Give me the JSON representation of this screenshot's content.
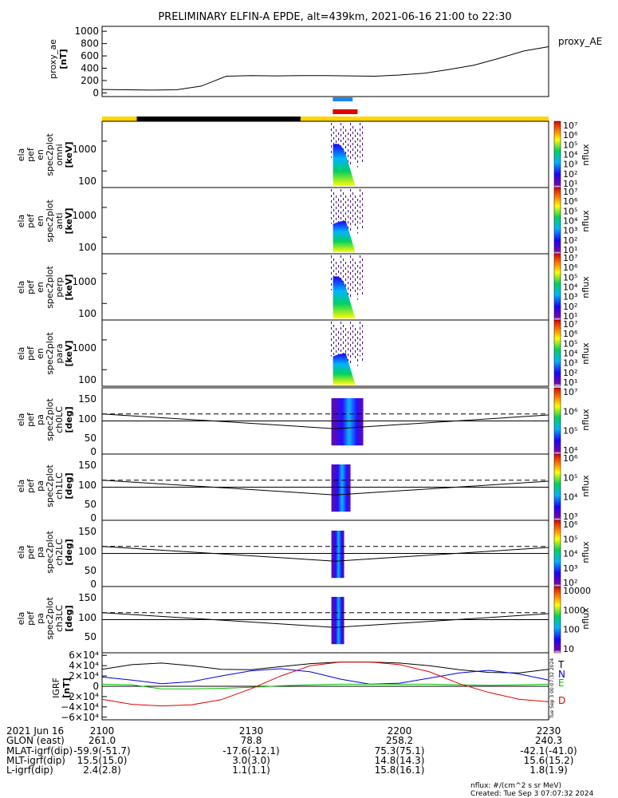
{
  "title": "PRELIMINARY ELFIN-A EPDE, alt=439km, 2021-06-16 21:00 to 22:30",
  "colors": {
    "ae_line": "#000000",
    "bar_blue": "#1e88e5",
    "bar_red": "#e00000",
    "bar_yellow": "#ffd400",
    "bar_black": "#000000",
    "igrf_T": "#000000",
    "igrf_N": "#0000e0",
    "igrf_E": "#00c000",
    "igrf_D": "#e00000"
  },
  "ae_panel": {
    "ylabel": "proxy_ae",
    "yunit": "[nT]",
    "legend": "proxy_AE",
    "yticks": [
      "1000",
      "800",
      "600",
      "400",
      "200",
      "0"
    ]
  },
  "energy_panels": [
    {
      "ylabel": [
        "ela",
        "pef",
        "en",
        "spec2plot",
        "omni"
      ],
      "yunit": "[keV]",
      "yticks": [
        "1000",
        "100"
      ],
      "cb_ticks": [
        "10⁷",
        "10⁶",
        "10⁵",
        "10⁴",
        "10³",
        "10²",
        "10¹"
      ],
      "cb_label": "nflux"
    },
    {
      "ylabel": [
        "ela",
        "pef",
        "en",
        "spec2plot",
        "anti"
      ],
      "yunit": "[keV]",
      "yticks": [
        "1000",
        "100"
      ],
      "cb_ticks": [
        "10⁷",
        "10⁶",
        "10⁵",
        "10⁴",
        "10³",
        "10²",
        "10¹"
      ],
      "cb_label": "nflux"
    },
    {
      "ylabel": [
        "ela",
        "pef",
        "en",
        "spec2plot",
        "perp"
      ],
      "yunit": "[keV]",
      "yticks": [
        "1000",
        "100"
      ],
      "cb_ticks": [
        "10⁷",
        "10⁶",
        "10⁵",
        "10⁴",
        "10³",
        "10²",
        "10¹"
      ],
      "cb_label": "nflux"
    },
    {
      "ylabel": [
        "ela",
        "pef",
        "en",
        "spec2plot",
        "para"
      ],
      "yunit": "[keV]",
      "yticks": [
        "1000",
        "100"
      ],
      "cb_ticks": [
        "10⁷",
        "10⁶",
        "10⁵",
        "10⁴",
        "10³",
        "10²",
        "10¹"
      ],
      "cb_label": "nflux"
    }
  ],
  "pa_panels": [
    {
      "ylabel": [
        "ela",
        "pef",
        "pa",
        "spec2plot",
        "ch0LC"
      ],
      "yunit": "[deg]",
      "yticks": [
        "150",
        "100",
        "50",
        "0"
      ],
      "cb_ticks": [
        "10⁷",
        "10⁶",
        "10⁵",
        "10⁴"
      ],
      "cb_label": "nflux"
    },
    {
      "ylabel": [
        "ela",
        "pef",
        "pa",
        "spec2plot",
        "ch1LC"
      ],
      "yunit": "[deg]",
      "yticks": [
        "150",
        "100",
        "50",
        "0"
      ],
      "cb_ticks": [
        "10⁶",
        "10⁵",
        "10⁴",
        "10³"
      ],
      "cb_label": "nflux"
    },
    {
      "ylabel": [
        "ela",
        "pef",
        "pa",
        "spec2plot",
        "ch2LC"
      ],
      "yunit": "[deg]",
      "yticks": [
        "150",
        "100",
        "50",
        "0"
      ],
      "cb_ticks": [
        "10⁶",
        "10⁵",
        "10⁴",
        "10³",
        "10²"
      ],
      "cb_label": "nflux"
    },
    {
      "ylabel": [
        "ela",
        "pef",
        "pa",
        "spec2plot",
        "ch3LC"
      ],
      "yunit": "[deg]",
      "yticks": [
        "150",
        "100",
        "50"
      ],
      "cb_ticks": [
        "10000",
        "1000",
        "100",
        "10"
      ],
      "cb_label": "nflux"
    }
  ],
  "igrf_panel": {
    "ylabel": "IGRF",
    "yunit": "[nT]",
    "yticks": [
      "6×10⁴",
      "4×10⁴",
      "2×10⁴",
      "0",
      "−2×10⁴",
      "−4×10⁴",
      "−6×10⁴"
    ],
    "legend": [
      "T",
      "N",
      "E",
      "D"
    ],
    "side_text": "Tue Sep 3 00:07:32 2024"
  },
  "chart_data": {
    "type": "line",
    "title": "PRELIMINARY ELFIN-A EPDE, alt=439km, 2021-06-16 21:00 to 22:30",
    "x_range_minutes": [
      0,
      90
    ],
    "proxy_ae": {
      "ylim": [
        -60,
        1080
      ],
      "t_min": [
        0,
        10,
        15,
        20,
        25,
        30,
        35,
        40,
        45,
        50,
        55,
        60,
        65,
        70,
        75,
        80,
        85,
        90
      ],
      "values": [
        55,
        45,
        50,
        110,
        270,
        280,
        275,
        280,
        280,
        275,
        270,
        290,
        320,
        380,
        450,
        560,
        680,
        750
      ]
    },
    "igrf": {
      "ylim": [
        -65000,
        65000
      ],
      "t_min": [
        0,
        6,
        12,
        18,
        24,
        30,
        36,
        42,
        48,
        54,
        60,
        66,
        72,
        78,
        84,
        90
      ],
      "series": [
        {
          "name": "T",
          "values": [
            33000,
            42000,
            45000,
            40000,
            33000,
            32000,
            38000,
            44000,
            47000,
            47000,
            45000,
            40000,
            32000,
            27000,
            26000,
            33000
          ]
        },
        {
          "name": "N",
          "values": [
            18000,
            12000,
            5000,
            9000,
            20000,
            30000,
            34000,
            28000,
            14000,
            4000,
            6000,
            16000,
            26000,
            31000,
            24000,
            12000
          ]
        },
        {
          "name": "E",
          "values": [
            4000,
            3000,
            -5000,
            -5000,
            -4000,
            -2000,
            1000,
            3000,
            4000,
            4000,
            4000,
            4000,
            3000,
            2000,
            3000,
            4000
          ]
        },
        {
          "name": "D",
          "values": [
            -25000,
            -35000,
            -38000,
            -36000,
            -26000,
            -5000,
            20000,
            40000,
            47000,
            47000,
            42000,
            28000,
            5000,
            -12000,
            -25000,
            -30000
          ]
        }
      ]
    },
    "pa_curves": {
      "lc_solid": {
        "t_min": [
          0,
          47,
          90
        ],
        "values": [
          110,
          68,
          107
        ]
      },
      "dash_level": 110,
      "center_level": 90
    },
    "science_zone_bar": {
      "yellow_ranges_min": [
        [
          0,
          7
        ],
        [
          40,
          90
        ]
      ],
      "black_ranges_min": [
        [
          7,
          40
        ]
      ]
    },
    "orbit_markers": {
      "blue_min": [
        46.5,
        50.5
      ],
      "red_min": [
        46.5,
        51.5
      ]
    }
  },
  "footer": {
    "date": "2021 Jun 16",
    "times": [
      "2100",
      "2130",
      "2200",
      "2230"
    ],
    "rows": [
      {
        "label": "GLON (east)",
        "values": [
          "261.0",
          "78.8",
          "258.2",
          "240.3"
        ]
      },
      {
        "label": "MLAT-igrf(dip)",
        "values": [
          "-59.9(-51.7)",
          "-17.6(-12.1)",
          "75.3(75.1)",
          "-42.1(-41.0)"
        ]
      },
      {
        "label": "MLT-igrf(dip)",
        "values": [
          "15.5(15.0)",
          "3.0(3.0)",
          "14.8(14.3)",
          "15.6(15.2)"
        ]
      },
      {
        "label": "L-igrf(dip)",
        "values": [
          "2.4(2.8)",
          "1.1(1.1)",
          "15.8(16.1)",
          "1.8(1.9)"
        ]
      }
    ],
    "units_note": "nflux: #/(cm^2 s sr MeV)",
    "created": "Created: Tue Sep  3 07:07:32 2024"
  }
}
